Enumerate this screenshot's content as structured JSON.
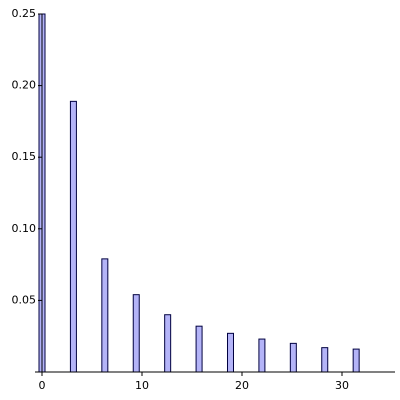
{
  "chart_data": {
    "type": "bar",
    "x": [
      0,
      3.14159,
      6.28319,
      9.42478,
      12.56637,
      15.70796,
      18.84956,
      21.99115,
      25.13274,
      28.27433,
      31.41593
    ],
    "values": [
      0.25,
      0.189,
      0.079,
      0.054,
      0.04,
      0.032,
      0.027,
      0.023,
      0.02,
      0.017,
      0.016
    ],
    "color": "#b4b4f8",
    "xlim": [
      -0.7,
      35.3
    ],
    "xticks": [
      0,
      10,
      20,
      30
    ],
    "ylim": [
      0,
      0.25
    ],
    "yticks": [
      {
        "value": 0.05,
        "label": "0.05"
      },
      {
        "value": 0.1,
        "label": "0.10"
      },
      {
        "value": 0.15,
        "label": "0.15"
      },
      {
        "value": 0.2,
        "label": "0.20"
      },
      {
        "value": 0.25,
        "label": "0.25"
      }
    ]
  }
}
